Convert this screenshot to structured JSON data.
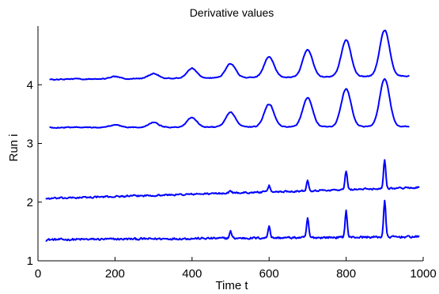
{
  "chart_data": {
    "type": "line",
    "title": "Derivative values",
    "xlabel": "Time t",
    "ylabel": "Run i",
    "xlim": [
      0,
      1000
    ],
    "ylim": [
      1,
      5
    ],
    "xticks": [
      0,
      200,
      400,
      600,
      800,
      1000
    ],
    "yticks": [
      1,
      2,
      3,
      4
    ],
    "grid": false,
    "line_color": "#0000ff",
    "series": [
      {
        "x_range": [
          20,
          990
        ],
        "baseline_start": 1.36,
        "baseline_end": 1.41,
        "noise_amplitude": 0.025,
        "peaks": [
          {
            "x": 500,
            "y": 1.5
          },
          {
            "x": 600,
            "y": 1.6
          },
          {
            "x": 700,
            "y": 1.72
          },
          {
            "x": 800,
            "y": 1.85
          },
          {
            "x": 900,
            "y": 2.02
          }
        ],
        "peak_width": 4
      },
      {
        "x_range": [
          20,
          990
        ],
        "baseline_start": 2.06,
        "baseline_end": 2.25,
        "noise_amplitude": 0.02,
        "peaks": [
          {
            "x": 500,
            "y": 2.2
          },
          {
            "x": 600,
            "y": 2.28
          },
          {
            "x": 700,
            "y": 2.38
          },
          {
            "x": 800,
            "y": 2.53
          },
          {
            "x": 900,
            "y": 2.73
          }
        ],
        "peak_width": 4
      },
      {
        "x_range": [
          30,
          965
        ],
        "baseline_start": 3.27,
        "baseline_end": 3.29,
        "noise_amplitude": 0.01,
        "peaks": [
          {
            "x": 100,
            "y": 3.28
          },
          {
            "x": 200,
            "y": 3.32
          },
          {
            "x": 300,
            "y": 3.36
          },
          {
            "x": 400,
            "y": 3.44
          },
          {
            "x": 500,
            "y": 3.53
          },
          {
            "x": 600,
            "y": 3.67
          },
          {
            "x": 700,
            "y": 3.78
          },
          {
            "x": 800,
            "y": 3.93
          },
          {
            "x": 900,
            "y": 4.1
          }
        ],
        "peak_width": 18
      },
      {
        "x_range": [
          30,
          965
        ],
        "baseline_start": 4.09,
        "baseline_end": 4.15,
        "noise_amplitude": 0.01,
        "peaks": [
          {
            "x": 100,
            "y": 4.1
          },
          {
            "x": 200,
            "y": 4.14
          },
          {
            "x": 300,
            "y": 4.19
          },
          {
            "x": 400,
            "y": 4.28
          },
          {
            "x": 500,
            "y": 4.36
          },
          {
            "x": 600,
            "y": 4.48
          },
          {
            "x": 700,
            "y": 4.6
          },
          {
            "x": 800,
            "y": 4.76
          },
          {
            "x": 900,
            "y": 4.93
          }
        ],
        "peak_width": 18
      }
    ]
  }
}
